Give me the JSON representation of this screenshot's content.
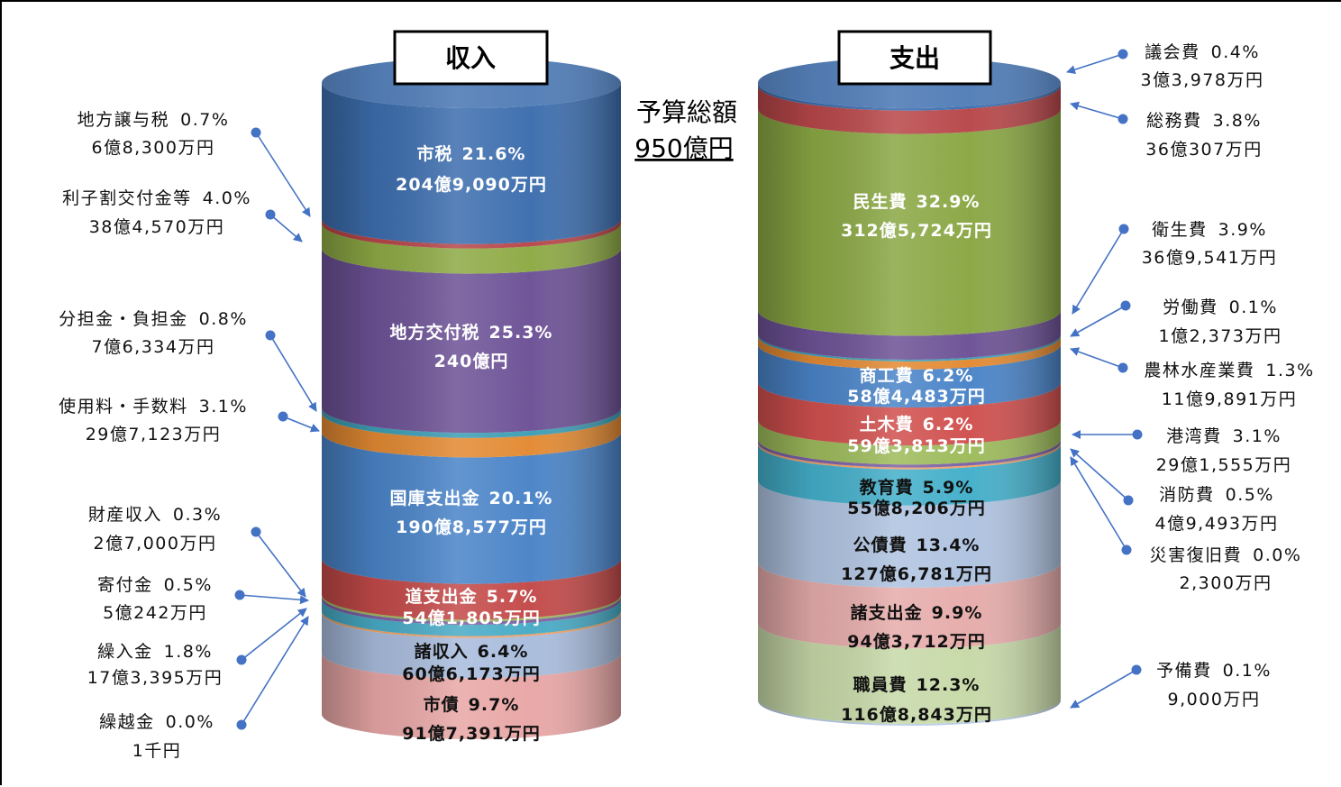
{
  "chart_data": [
    {
      "type": "stacked-cylinder",
      "title": "収入",
      "segments": [
        {
          "name": "市税",
          "pct": 21.6,
          "amount": "204億9,090万円",
          "color": "#3D6EAE",
          "label": "inside",
          "label_color": "light"
        },
        {
          "name": "地方譲与税",
          "pct": 0.7,
          "amount": "6億8,300万円",
          "color": "#B8474A",
          "label": "side"
        },
        {
          "name": "利子割交付金等",
          "pct": 4.0,
          "amount": "38億4,570万円",
          "color": "#8EAA45",
          "label": "side"
        },
        {
          "name": "地方交付税",
          "pct": 25.3,
          "amount": "240億円",
          "color": "#6D5296",
          "label": "inside",
          "label_color": "light"
        },
        {
          "name": "分担金・負担金",
          "pct": 0.8,
          "amount": "7億6,334万円",
          "color": "#3E9EB5",
          "label": "side"
        },
        {
          "name": "使用料・手数料",
          "pct": 3.1,
          "amount": "29億7,123万円",
          "color": "#E38A33",
          "label": "side"
        },
        {
          "name": "国庫支出金",
          "pct": 20.1,
          "amount": "190億8,577万円",
          "color": "#4A84C8",
          "label": "inside",
          "label_color": "light"
        },
        {
          "name": "道支出金",
          "pct": 5.7,
          "amount": "54億1,805万円",
          "color": "#C34A49",
          "label": "inside",
          "label_color": "light"
        },
        {
          "name": "財産収入",
          "pct": 0.3,
          "amount": "2億7,000万円",
          "color": "#9DBB5B",
          "label": "side"
        },
        {
          "name": "寄付金",
          "pct": 0.5,
          "amount": "5億242万円",
          "color": "#7C63A4",
          "label": "side"
        },
        {
          "name": "繰入金",
          "pct": 1.8,
          "amount": "17億3,395万円",
          "color": "#48ABC6",
          "label": "side"
        },
        {
          "name": "繰越金",
          "pct": 0.0,
          "amount": "1千円",
          "color": "#EFA065",
          "label": "side"
        },
        {
          "name": "諸収入",
          "pct": 6.4,
          "amount": "60億6,173万円",
          "color": "#A8BCDC",
          "label": "inside",
          "label_color": "dark"
        },
        {
          "name": "市債",
          "pct": 9.7,
          "amount": "91億7,391万円",
          "color": "#E8A7A6",
          "label": "inside",
          "label_color": "dark"
        }
      ]
    },
    {
      "type": "stacked-cylinder",
      "title": "支出",
      "segments": [
        {
          "name": "議会費",
          "pct": 0.4,
          "amount": "3億3,978万円",
          "color": "#3D6EAE",
          "label": "side"
        },
        {
          "name": "総務費",
          "pct": 3.8,
          "amount": "36億307万円",
          "color": "#B8474A",
          "label": "side"
        },
        {
          "name": "民生費",
          "pct": 32.9,
          "amount": "312億5,724万円",
          "color": "#8AA744",
          "label": "inside",
          "label_color": "light"
        },
        {
          "name": "衛生費",
          "pct": 3.9,
          "amount": "36億9,541万円",
          "color": "#6D5296",
          "label": "side"
        },
        {
          "name": "労働費",
          "pct": 0.1,
          "amount": "1億2,373万円",
          "color": "#3E9EB5",
          "label": "side"
        },
        {
          "name": "農林水産業費",
          "pct": 1.3,
          "amount": "11億9,891万円",
          "color": "#E38A33",
          "label": "side"
        },
        {
          "name": "商工費",
          "pct": 6.2,
          "amount": "58億4,483万円",
          "color": "#4A84C8",
          "label": "inside",
          "label_color": "light"
        },
        {
          "name": "土木費",
          "pct": 6.2,
          "amount": "59億3,813万円",
          "color": "#D0504E",
          "label": "inside",
          "label_color": "light"
        },
        {
          "name": "港湾費",
          "pct": 3.1,
          "amount": "29億1,555万円",
          "color": "#9DBB5B",
          "label": "side"
        },
        {
          "name": "消防費",
          "pct": 0.5,
          "amount": "4億9,493万円",
          "color": "#7C63A4",
          "label": "side"
        },
        {
          "name": "災害復旧費",
          "pct": 0.0,
          "amount": "2,300万円",
          "color": "#F0A16A",
          "label": "side"
        },
        {
          "name": "教育費",
          "pct": 5.9,
          "amount": "55億8,206万円",
          "color": "#44AFCA",
          "label": "inside",
          "label_color": "dark"
        },
        {
          "name": "公債費",
          "pct": 13.4,
          "amount": "127億6,781万円",
          "color": "#AFC3E0",
          "label": "inside",
          "label_color": "dark"
        },
        {
          "name": "諸支出金",
          "pct": 9.9,
          "amount": "94億3,712万円",
          "color": "#E6ACAB",
          "label": "inside",
          "label_color": "dark"
        },
        {
          "name": "職員費",
          "pct": 12.3,
          "amount": "116億8,843万円",
          "color": "#C7D9A8",
          "label": "inside",
          "label_color": "dark"
        },
        {
          "name": "予備費",
          "pct": 0.1,
          "amount": "9,000万円",
          "color": "#B8CBE6",
          "label": "side"
        }
      ]
    }
  ],
  "total": {
    "label": "予算総額",
    "value": "950億円"
  }
}
